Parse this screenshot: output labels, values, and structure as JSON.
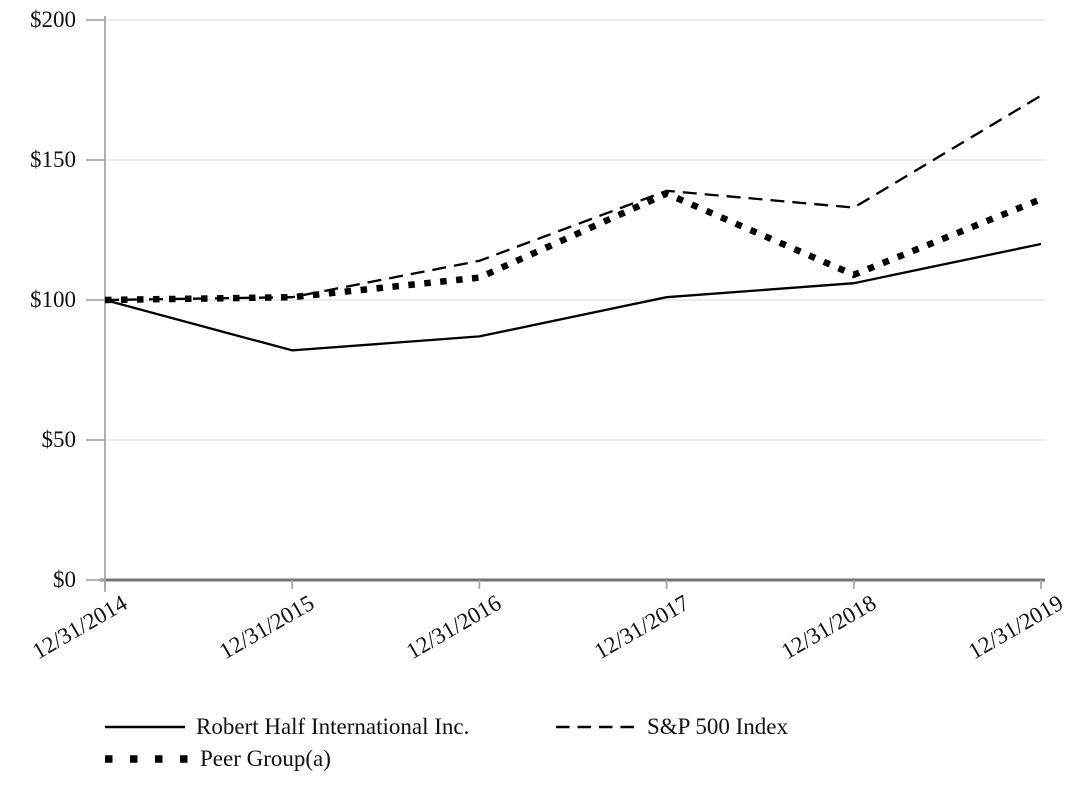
{
  "chart_data": {
    "type": "line",
    "title": "",
    "categories": [
      "12/31/2014",
      "12/31/2015",
      "12/31/2016",
      "12/31/2017",
      "12/31/2018",
      "12/31/2019"
    ],
    "series": [
      {
        "name": "Robert Half International Inc.",
        "style": "solid",
        "color": "#000000",
        "values": [
          100,
          82,
          87,
          101,
          106,
          120
        ]
      },
      {
        "name": "S&P 500 Index",
        "style": "dashed",
        "color": "#000000",
        "values": [
          100,
          101,
          114,
          139,
          133,
          173
        ]
      },
      {
        "name": "Peer Group(a)",
        "style": "dotted",
        "color": "#000000",
        "values": [
          100,
          101,
          108,
          138,
          109,
          136
        ]
      }
    ],
    "y_axis": {
      "min": 0,
      "max": 200,
      "tick_labels": [
        "$0",
        "$50",
        "$100",
        "$150",
        "$200"
      ]
    },
    "x_axis": {
      "tick_label_rotation_deg": -30
    },
    "grid": true,
    "legend_position": "bottom-left"
  },
  "colors": {
    "background": "#ffffff",
    "gridline": "#eaeaea",
    "y_axis_line": "#a6a6a6",
    "x_axis_line": "#737373",
    "series": "#000000",
    "text": "#111111"
  }
}
